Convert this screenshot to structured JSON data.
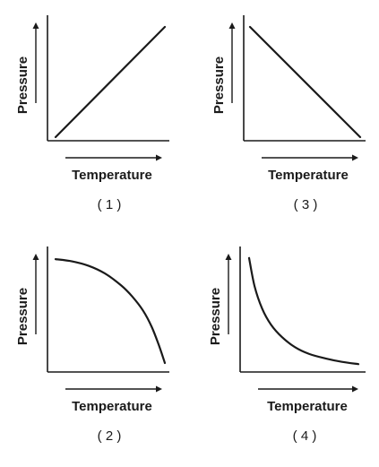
{
  "chart_data": [
    {
      "type": "line",
      "caption": "( 1 )",
      "xlabel": "Temperature",
      "ylabel": "Pressure",
      "x": [
        0,
        1
      ],
      "y": [
        0,
        1
      ],
      "xlim": [
        0,
        1
      ],
      "ylim": [
        0,
        1
      ],
      "grid": false
    },
    {
      "type": "line",
      "caption": "( 2 )",
      "xlabel": "Temperature",
      "ylabel": "Pressure",
      "x": [
        0,
        0.15,
        0.3,
        0.45,
        0.6,
        0.7,
        0.8,
        0.88,
        0.95,
        1.0
      ],
      "y": [
        0.95,
        0.93,
        0.89,
        0.82,
        0.71,
        0.61,
        0.48,
        0.33,
        0.15,
        0.0
      ],
      "xlim": [
        0,
        1
      ],
      "ylim": [
        0,
        1
      ],
      "grid": false
    },
    {
      "type": "line",
      "caption": "( 3 )",
      "xlabel": "Temperature",
      "ylabel": "Pressure",
      "x": [
        0,
        1
      ],
      "y": [
        1,
        0
      ],
      "xlim": [
        0,
        1
      ],
      "ylim": [
        0,
        1
      ],
      "grid": false
    },
    {
      "type": "line",
      "caption": "( 4 )",
      "xlabel": "Temperature",
      "ylabel": "Pressure",
      "x": [
        0,
        0.05,
        0.12,
        0.2,
        0.3,
        0.42,
        0.55,
        0.7,
        0.85,
        1.0
      ],
      "y": [
        0.97,
        0.72,
        0.52,
        0.38,
        0.27,
        0.18,
        0.12,
        0.08,
        0.05,
        0.03
      ],
      "xlim": [
        0,
        1
      ],
      "ylim": [
        0,
        1
      ],
      "grid": false
    }
  ],
  "colors": {
    "ink": "#1a1a1a",
    "background": "#ffffff"
  }
}
